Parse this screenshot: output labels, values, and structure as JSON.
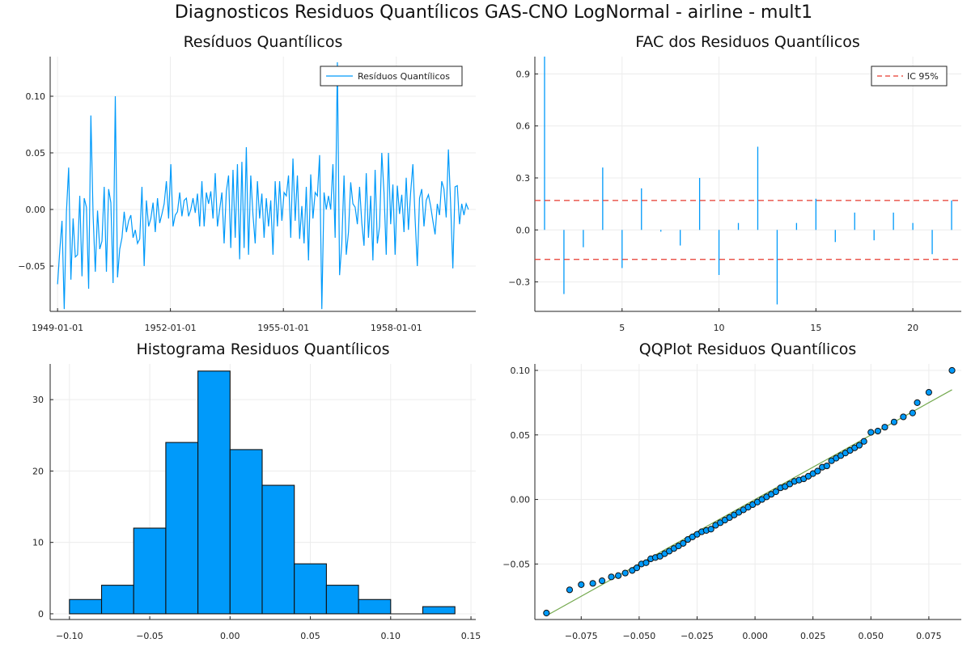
{
  "suptitle": "Diagnosticos Residuos  Quantílicos GAS-CNO LogNormal - airline - mult1",
  "colors": {
    "series": "#009AFA",
    "ic": "#E63A2F",
    "qqline": "#74A94E",
    "axis": "#222222",
    "grid": "#ececec"
  },
  "chart_data": [
    {
      "type": "line",
      "title": "Resíduos  Quantílicos",
      "legend": "top-right",
      "series": [
        {
          "name": "Resíduos Quantílicos",
          "values": [
            -0.066,
            -0.036,
            -0.01,
            -0.088,
            -0.002,
            0.037,
            -0.062,
            -0.008,
            -0.042,
            -0.04,
            0.012,
            -0.059,
            0.01,
            0.002,
            -0.07,
            0.083,
            -0.005,
            -0.055,
            -0.001,
            -0.035,
            -0.028,
            0.02,
            -0.055,
            0.018,
            0.006,
            -0.065,
            0.1,
            -0.06,
            -0.035,
            -0.025,
            -0.002,
            -0.02,
            -0.01,
            -0.005,
            -0.025,
            -0.018,
            -0.03,
            -0.026,
            0.02,
            -0.05,
            0.008,
            -0.015,
            -0.008,
            0.006,
            -0.02,
            0.01,
            -0.012,
            -0.004,
            0.005,
            0.025,
            -0.008,
            0.04,
            -0.015,
            -0.005,
            -0.002,
            0.015,
            -0.006,
            0.008,
            0.01,
            -0.006,
            0.0,
            0.01,
            -0.003,
            0.014,
            -0.015,
            0.025,
            -0.015,
            0.015,
            0.005,
            0.016,
            -0.008,
            0.032,
            -0.015,
            0.0,
            0.015,
            -0.03,
            0.016,
            0.03,
            -0.034,
            0.035,
            -0.025,
            0.04,
            -0.044,
            0.042,
            -0.034,
            0.055,
            -0.04,
            0.03,
            -0.005,
            -0.03,
            0.025,
            -0.008,
            0.014,
            -0.025,
            0.01,
            -0.015,
            0.008,
            -0.04,
            0.025,
            -0.015,
            0.025,
            -0.01,
            0.015,
            0.012,
            0.03,
            -0.025,
            0.045,
            -0.01,
            0.03,
            -0.026,
            0.003,
            -0.03,
            0.02,
            -0.045,
            0.031,
            -0.008,
            0.015,
            0.012,
            0.048,
            -0.088,
            0.015,
            0.0,
            0.012,
            0.0,
            0.04,
            -0.025,
            0.13,
            -0.058,
            -0.03,
            0.03,
            -0.04,
            -0.02,
            0.024,
            0.005,
            0.002,
            -0.013,
            0.02,
            -0.012,
            -0.032,
            0.032,
            -0.025,
            0.012,
            -0.045,
            0.035,
            -0.03,
            -0.015,
            0.05,
            0.015,
            -0.04,
            0.05,
            -0.013,
            0.022,
            -0.04,
            0.021,
            -0.004,
            0.013,
            -0.02,
            0.028,
            -0.018,
            0.015,
            0.04,
            -0.008,
            -0.05,
            0.01,
            0.018,
            -0.015,
            0.008,
            0.013,
            0.003,
            -0.01,
            -0.022,
            0.005,
            -0.005,
            0.025,
            0.018,
            -0.007,
            0.053,
            0.005,
            -0.052,
            0.02,
            0.021,
            -0.013,
            0.005,
            -0.005,
            0.005,
            0.0
          ]
        }
      ],
      "x_start": "1949-01-01",
      "x_end": "1959-12-01",
      "xticks": [
        "1949-01-01",
        "1952-01-01",
        "1955-01-01",
        "1958-01-01"
      ],
      "yticks": [
        -0.05,
        0.0,
        0.05,
        0.1
      ],
      "ytick_labels": [
        "−0.05",
        "0.00",
        "0.05",
        "0.10"
      ],
      "ylim": [
        -0.09,
        0.135
      ]
    },
    {
      "type": "bar",
      "title": "FAC dos Residuos Quantílicos",
      "legend": "top-right",
      "lags": [
        1,
        2,
        3,
        4,
        5,
        6,
        7,
        8,
        9,
        10,
        11,
        12,
        13,
        14,
        15,
        16,
        17,
        18,
        19,
        20,
        21,
        22
      ],
      "values": [
        1.0,
        -0.37,
        -0.1,
        0.36,
        -0.22,
        0.24,
        -0.01,
        -0.09,
        0.3,
        -0.26,
        0.04,
        0.48,
        -0.43,
        0.04,
        0.18,
        -0.07,
        0.1,
        -0.06,
        0.1,
        0.04,
        -0.14,
        0.17
      ],
      "ic_name": "IC 95%",
      "ic_value": 0.17,
      "xticks": [
        5,
        10,
        15,
        20
      ],
      "yticks": [
        -0.3,
        0.0,
        0.3,
        0.6,
        0.9
      ],
      "ytick_labels": [
        "−0.3",
        "0.0",
        "0.3",
        "0.6",
        "0.9"
      ],
      "xlim": [
        0.5,
        22.5
      ],
      "ylim": [
        -0.47,
        1.0
      ]
    },
    {
      "type": "histogram",
      "title": "Histograma Residuos Quantílicos",
      "bin_edges": [
        -0.1,
        -0.08,
        -0.06,
        -0.04,
        -0.02,
        0.0,
        0.02,
        0.04,
        0.06,
        0.08,
        0.1,
        0.12,
        0.14
      ],
      "counts": [
        2,
        4,
        12,
        24,
        34,
        23,
        18,
        7,
        4,
        2,
        0,
        1
      ],
      "xticks": [
        -0.1,
        -0.05,
        0.0,
        0.05,
        0.1,
        0.15
      ],
      "xtick_labels": [
        "−0.10",
        "−0.05",
        "0.00",
        "0.05",
        "0.10",
        "0.15"
      ],
      "yticks": [
        0,
        10,
        20,
        30
      ],
      "ytick_labels": [
        "0",
        "10",
        "20",
        "30"
      ],
      "xlim": [
        -0.112,
        0.153
      ],
      "ylim": [
        -0.8,
        35
      ]
    },
    {
      "type": "scatter",
      "title": "QQPlot Residuos Quantílicos",
      "points": [
        [
          -0.09,
          -0.088
        ],
        [
          -0.08,
          -0.07
        ],
        [
          -0.075,
          -0.066
        ],
        [
          -0.07,
          -0.065
        ],
        [
          -0.066,
          -0.063
        ],
        [
          -0.062,
          -0.06
        ],
        [
          -0.059,
          -0.059
        ],
        [
          -0.056,
          -0.057
        ],
        [
          -0.053,
          -0.055
        ],
        [
          -0.051,
          -0.053
        ],
        [
          -0.049,
          -0.05
        ],
        [
          -0.047,
          -0.049
        ],
        [
          -0.045,
          -0.046
        ],
        [
          -0.043,
          -0.045
        ],
        [
          -0.041,
          -0.044
        ],
        [
          -0.039,
          -0.042
        ],
        [
          -0.037,
          -0.04
        ],
        [
          -0.035,
          -0.038
        ],
        [
          -0.033,
          -0.036
        ],
        [
          -0.031,
          -0.034
        ],
        [
          -0.029,
          -0.031
        ],
        [
          -0.027,
          -0.029
        ],
        [
          -0.025,
          -0.027
        ],
        [
          -0.023,
          -0.025
        ],
        [
          -0.021,
          -0.024
        ],
        [
          -0.019,
          -0.023
        ],
        [
          -0.017,
          -0.02
        ],
        [
          -0.015,
          -0.018
        ],
        [
          -0.013,
          -0.016
        ],
        [
          -0.011,
          -0.014
        ],
        [
          -0.009,
          -0.012
        ],
        [
          -0.007,
          -0.01
        ],
        [
          -0.005,
          -0.008
        ],
        [
          -0.003,
          -0.006
        ],
        [
          -0.001,
          -0.004
        ],
        [
          0.001,
          -0.002
        ],
        [
          0.003,
          0.0
        ],
        [
          0.005,
          0.002
        ],
        [
          0.007,
          0.004
        ],
        [
          0.009,
          0.006
        ],
        [
          0.011,
          0.009
        ],
        [
          0.013,
          0.01
        ],
        [
          0.015,
          0.012
        ],
        [
          0.017,
          0.014
        ],
        [
          0.019,
          0.015
        ],
        [
          0.021,
          0.016
        ],
        [
          0.023,
          0.018
        ],
        [
          0.025,
          0.02
        ],
        [
          0.027,
          0.022
        ],
        [
          0.029,
          0.025
        ],
        [
          0.031,
          0.026
        ],
        [
          0.033,
          0.03
        ],
        [
          0.035,
          0.032
        ],
        [
          0.037,
          0.034
        ],
        [
          0.039,
          0.036
        ],
        [
          0.041,
          0.038
        ],
        [
          0.043,
          0.04
        ],
        [
          0.045,
          0.042
        ],
        [
          0.047,
          0.045
        ],
        [
          0.05,
          0.052
        ],
        [
          0.053,
          0.053
        ],
        [
          0.056,
          0.056
        ],
        [
          0.06,
          0.06
        ],
        [
          0.064,
          0.064
        ],
        [
          0.068,
          0.067
        ],
        [
          0.07,
          0.075
        ],
        [
          0.075,
          0.083
        ],
        [
          0.085,
          0.1
        ]
      ],
      "line": [
        [
          -0.09,
          -0.09
        ],
        [
          0.085,
          0.085
        ]
      ],
      "xticks": [
        -0.075,
        -0.05,
        -0.025,
        0.0,
        0.025,
        0.05,
        0.075
      ],
      "xtick_labels": [
        "−0.075",
        "−0.050",
        "−0.025",
        "0.000",
        "0.025",
        "0.050",
        "0.075"
      ],
      "yticks": [
        -0.05,
        0.0,
        0.05,
        0.1
      ],
      "ytick_labels": [
        "−0.05",
        "0.00",
        "0.05",
        "0.10"
      ],
      "xlim": [
        -0.095,
        0.089
      ],
      "ylim": [
        -0.093,
        0.105
      ]
    }
  ]
}
